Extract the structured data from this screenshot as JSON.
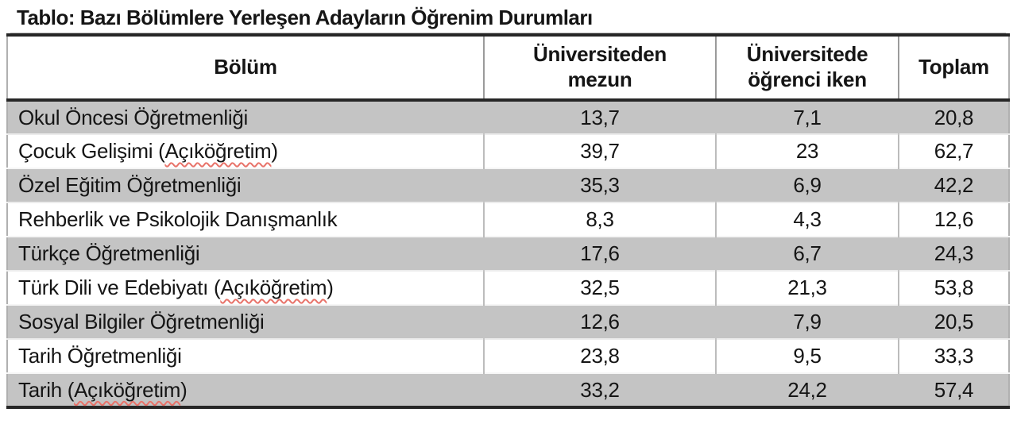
{
  "title": "Tablo: Bazı Bölümlere Yerleşen Adayların Öğrenim Durumları",
  "table": {
    "columns": [
      "Bölüm",
      "Üniversiteden\nmezun",
      "Üniversitede\nöğrenci iken",
      "Toplam"
    ],
    "misspelled_word": "Açıköğretim",
    "rows": [
      {
        "bolum": "Okul Öncesi Öğretmenliği",
        "mezun": "13,7",
        "ogrenci": "7,1",
        "toplam": "20,8"
      },
      {
        "bolum": "Çocuk Gelişimi (Açıköğretim)",
        "mezun": "39,7",
        "ogrenci": "23",
        "toplam": "62,7"
      },
      {
        "bolum": "Özel Eğitim Öğretmenliği",
        "mezun": "35,3",
        "ogrenci": "6,9",
        "toplam": "42,2"
      },
      {
        "bolum": "Rehberlik ve Psikolojik Danışmanlık",
        "mezun": "8,3",
        "ogrenci": "4,3",
        "toplam": "12,6"
      },
      {
        "bolum": "Türkçe Öğretmenliği",
        "mezun": "17,6",
        "ogrenci": "6,7",
        "toplam": "24,3"
      },
      {
        "bolum": "Türk Dili ve Edebiyatı (Açıköğretim)",
        "mezun": "32,5",
        "ogrenci": "21,3",
        "toplam": "53,8"
      },
      {
        "bolum": "Sosyal Bilgiler Öğretmenliği",
        "mezun": "12,6",
        "ogrenci": "7,9",
        "toplam": "20,5"
      },
      {
        "bolum": "Tarih Öğretmenliği",
        "mezun": "23,8",
        "ogrenci": "9,5",
        "toplam": "33,3"
      },
      {
        "bolum": "Tarih (Açıköğretim)",
        "mezun": "33,2",
        "ogrenci": "24,2",
        "toplam": "57,4"
      }
    ]
  },
  "colors": {
    "row-gray": "#c4c4c4",
    "border-dark": "#262626",
    "squiggle-red": "#e8736a"
  }
}
